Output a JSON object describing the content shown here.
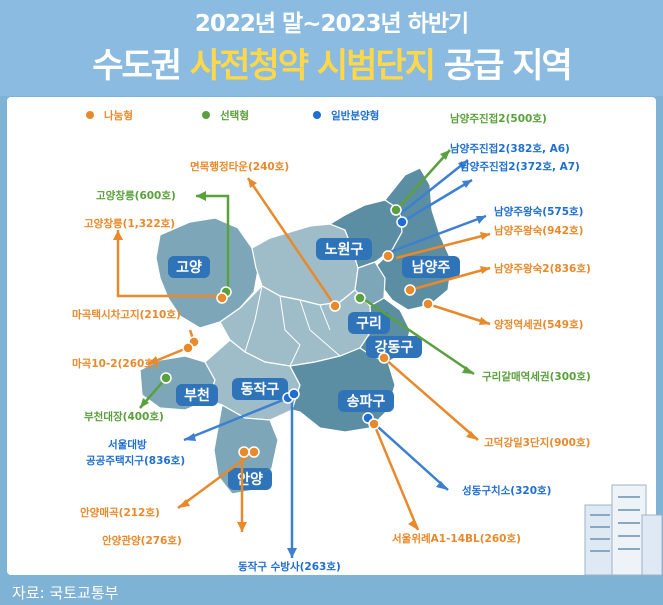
{
  "header": {
    "subtitle": "2022년 말~2023년 하반기",
    "title_part1": "수도권 ",
    "title_highlight": "사전청약 시범단지",
    "title_part2": " 공급 지역"
  },
  "legend": [
    {
      "label": "나눔형",
      "color": "#e8892b"
    },
    {
      "label": "선택형",
      "color": "#5aa03c"
    },
    {
      "label": "일반분양형",
      "color": "#1f6fd1"
    }
  ],
  "regions": {
    "goyang": "고양",
    "nowon": "노원구",
    "namyangju": "남양주",
    "guri": "구리",
    "gangdong": "강동구",
    "bucheon": "부천",
    "dongjak": "동작구",
    "songpa": "송파구",
    "anyang": "안양"
  },
  "sites": [
    {
      "label": "남양주진접2(500호)",
      "type": "선택형"
    },
    {
      "label": "남양주진접2(382호, A6)",
      "type": "일반분양형"
    },
    {
      "label": "남양주진접2(372호, A7)",
      "type": "일반분양형"
    },
    {
      "label": "면목행정타운(240호)",
      "type": "나눔형"
    },
    {
      "label": "고양창릉(600호)",
      "type": "선택형"
    },
    {
      "label": "고양창릉(1,322호)",
      "type": "나눔형"
    },
    {
      "label": "남양주왕숙(575호)",
      "type": "일반분양형"
    },
    {
      "label": "남양주왕숙(942호)",
      "type": "나눔형"
    },
    {
      "label": "남양주왕숙2(836호)",
      "type": "나눔형"
    },
    {
      "label": "양정역세권(549호)",
      "type": "나눔형"
    },
    {
      "label": "마곡택시차고지(210호)",
      "type": "나눔형"
    },
    {
      "label": "마곡10-2(260호)",
      "type": "나눔형"
    },
    {
      "label": "구리갈매역세권(300호)",
      "type": "선택형"
    },
    {
      "label": "부천대장(400호)",
      "type": "선택형"
    },
    {
      "label": "고덕강일3단지(900호)",
      "type": "나눔형"
    },
    {
      "label": "서울대방\n공공주택지구(836호)",
      "type": "일반분양형"
    },
    {
      "label": "성동구치소(320호)",
      "type": "일반분양형"
    },
    {
      "label": "안양매곡(212호)",
      "type": "나눔형"
    },
    {
      "label": "서울위례A1-14BL(260호)",
      "type": "나눔형"
    },
    {
      "label": "안양관양(276호)",
      "type": "나눔형"
    },
    {
      "label": "동작구 수방사(263호)",
      "type": "일반분양형"
    }
  ],
  "footer": "자료: 국토교통부"
}
